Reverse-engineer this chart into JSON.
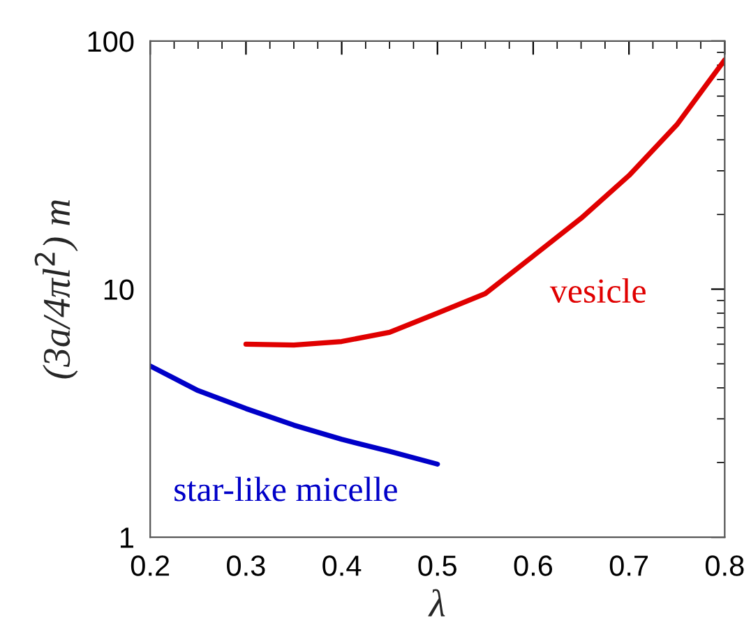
{
  "chart_data": {
    "type": "line",
    "xlabel": "λ",
    "ylabel": "(3a/4πl$^{2}$) m",
    "log": "y",
    "grid": false,
    "legend": false,
    "marker": "none",
    "line_style": "solid",
    "xlim": [
      0.2,
      0.8
    ],
    "xticks": [
      0.2,
      0.3,
      0.4,
      0.5,
      0.6,
      0.7,
      0.8
    ],
    "ylim": [
      1,
      100
    ],
    "yticks": [
      1,
      10,
      100
    ],
    "series": [
      {
        "name": "star-like micelle",
        "color": "#0000c8",
        "x": [
          0.2,
          0.25,
          0.3,
          0.35,
          0.4,
          0.45,
          0.5
        ],
        "values": [
          4.9,
          3.9,
          3.3,
          2.83,
          2.48,
          2.22,
          1.97
        ]
      },
      {
        "name": "vesicle",
        "color": "#e00000",
        "x": [
          0.3,
          0.35,
          0.4,
          0.45,
          0.5,
          0.55,
          0.6,
          0.65,
          0.7,
          0.75,
          0.8
        ],
        "values": [
          6.0,
          5.95,
          6.15,
          6.7,
          8.0,
          9.6,
          13.6,
          19.3,
          28.7,
          46,
          84
        ]
      }
    ]
  }
}
